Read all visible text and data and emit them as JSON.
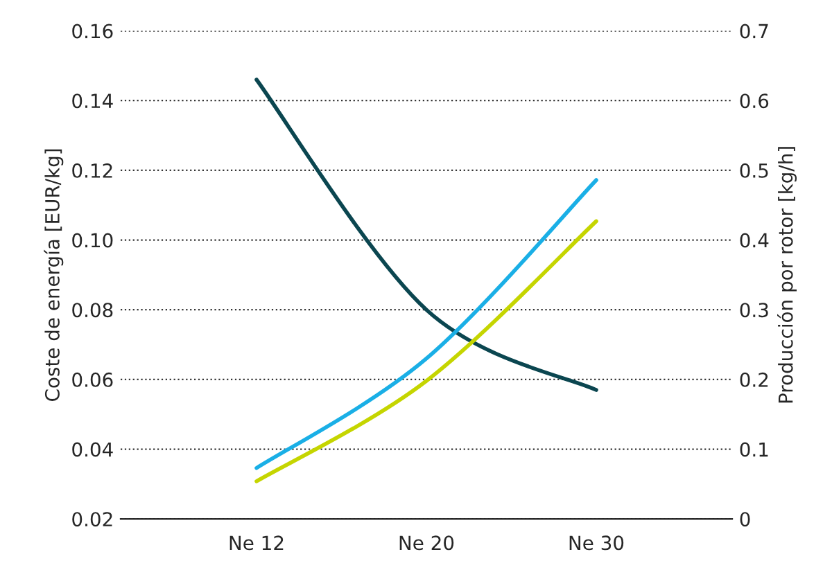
{
  "chart_data": {
    "type": "line",
    "ylabel": "Coste de energía [EUR/kg]",
    "y2label": "Producción por rotor [kg/h]",
    "categories": [
      "Ne 12",
      "Ne 20",
      "Ne 30"
    ],
    "series": [
      {
        "color": "#0b4650",
        "values": [
          0.146,
          0.08,
          0.057
        ]
      },
      {
        "color": "#1aafe6",
        "axis": "y2",
        "values": [
          0.073,
          0.23,
          0.486
        ]
      },
      {
        "color": "#c5d500",
        "axis": "y2",
        "values": [
          0.054,
          0.198,
          0.427
        ]
      }
    ],
    "ylim": [
      0.02,
      0.16
    ],
    "yticks": [
      {
        "value": 0.02,
        "label": "0.02"
      },
      {
        "value": 0.04,
        "label": "0.04"
      },
      {
        "value": 0.06,
        "label": "0.06"
      },
      {
        "value": 0.08,
        "label": "0.08"
      },
      {
        "value": 0.1,
        "label": "0.10"
      },
      {
        "value": 0.12,
        "label": "0.12"
      },
      {
        "value": 0.14,
        "label": "0.14"
      },
      {
        "value": 0.16,
        "label": "0.16"
      }
    ],
    "y2lim": [
      0,
      0.7
    ],
    "y2ticks": [
      0,
      0.1,
      0.2,
      0.3,
      0.4,
      0.5,
      0.6,
      0.7
    ],
    "grid": "y",
    "legend": false,
    "line_style": "solid",
    "marker": "none"
  }
}
